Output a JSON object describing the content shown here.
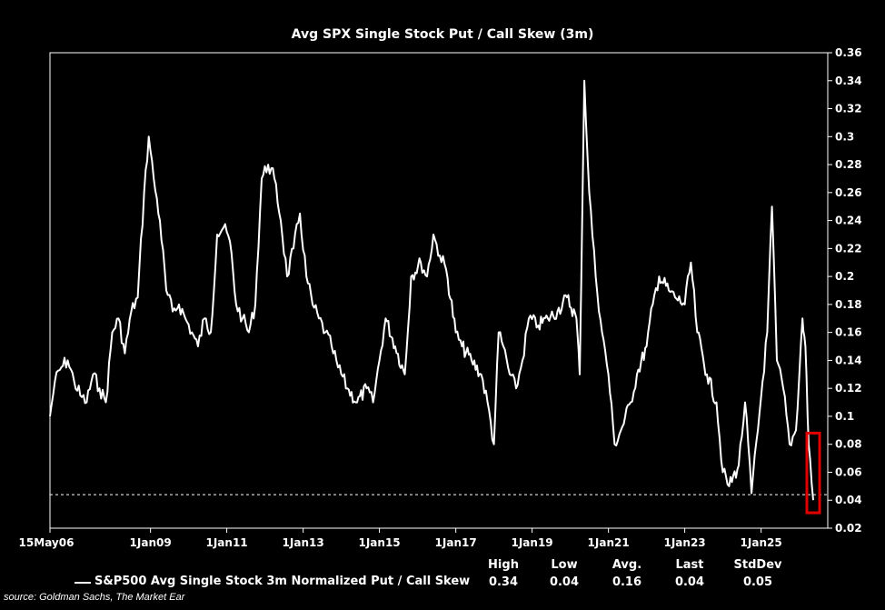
{
  "chart_data": {
    "type": "line",
    "title": "Avg SPX Single Stock Put / Call Skew (3m)",
    "xlabel": "",
    "ylabel": "",
    "y_axis_side": "right",
    "ylim": [
      0.02,
      0.36
    ],
    "yticks": [
      "0.36",
      "0.34",
      "0.32",
      "0.3",
      "0.28",
      "0.26",
      "0.24",
      "0.22",
      "0.2",
      "0.18",
      "0.16",
      "0.14",
      "0.12",
      "0.1",
      "0.08",
      "0.06",
      "0.04",
      "0.02"
    ],
    "xlim": [
      "2006-05-15",
      "2026-10-01"
    ],
    "xticks": [
      {
        "label": "15May06",
        "date": "2006-05-15"
      },
      {
        "label": "1Jan09",
        "date": "2009-01-01"
      },
      {
        "label": "1Jan11",
        "date": "2011-01-01"
      },
      {
        "label": "1Jan13",
        "date": "2013-01-01"
      },
      {
        "label": "1Jan15",
        "date": "2015-01-01"
      },
      {
        "label": "1Jan17",
        "date": "2017-01-01"
      },
      {
        "label": "1Jan19",
        "date": "2019-01-01"
      },
      {
        "label": "1Jan21",
        "date": "2021-01-01"
      },
      {
        "label": "1Jan23",
        "date": "2023-01-01"
      },
      {
        "label": "1Jan25",
        "date": "2025-01-01"
      }
    ],
    "grid": false,
    "series": [
      {
        "name": "S&P500 Avg Single Stock 3m Normalized Put / Call Skew",
        "color": "#ffffff",
        "points": [
          [
            "2006-05-15",
            0.1
          ],
          [
            "2006-07-01",
            0.125
          ],
          [
            "2006-09-01",
            0.135
          ],
          [
            "2006-11-01",
            0.14
          ],
          [
            "2007-01-01",
            0.125
          ],
          [
            "2007-03-01",
            0.115
          ],
          [
            "2007-05-01",
            0.11
          ],
          [
            "2007-07-01",
            0.13
          ],
          [
            "2007-09-01",
            0.12
          ],
          [
            "2007-11-01",
            0.11
          ],
          [
            "2008-01-01",
            0.16
          ],
          [
            "2008-03-01",
            0.17
          ],
          [
            "2008-05-01",
            0.145
          ],
          [
            "2008-07-01",
            0.175
          ],
          [
            "2008-09-01",
            0.185
          ],
          [
            "2008-11-01",
            0.26
          ],
          [
            "2008-12-15",
            0.3
          ],
          [
            "2009-02-01",
            0.27
          ],
          [
            "2009-04-01",
            0.24
          ],
          [
            "2009-06-01",
            0.19
          ],
          [
            "2009-08-01",
            0.175
          ],
          [
            "2009-10-01",
            0.18
          ],
          [
            "2009-12-01",
            0.17
          ],
          [
            "2010-02-01",
            0.16
          ],
          [
            "2010-04-01",
            0.15
          ],
          [
            "2010-06-01",
            0.17
          ],
          [
            "2010-08-01",
            0.16
          ],
          [
            "2010-10-01",
            0.23
          ],
          [
            "2010-12-01",
            0.235
          ],
          [
            "2011-02-01",
            0.225
          ],
          [
            "2011-04-01",
            0.18
          ],
          [
            "2011-06-01",
            0.17
          ],
          [
            "2011-08-01",
            0.16
          ],
          [
            "2011-10-01",
            0.18
          ],
          [
            "2011-12-01",
            0.27
          ],
          [
            "2012-02-01",
            0.28
          ],
          [
            "2012-04-01",
            0.27
          ],
          [
            "2012-06-01",
            0.24
          ],
          [
            "2012-08-01",
            0.2
          ],
          [
            "2012-10-01",
            0.22
          ],
          [
            "2012-12-01",
            0.245
          ],
          [
            "2013-02-01",
            0.2
          ],
          [
            "2013-04-01",
            0.18
          ],
          [
            "2013-06-01",
            0.17
          ],
          [
            "2013-08-01",
            0.16
          ],
          [
            "2013-10-01",
            0.15
          ],
          [
            "2013-12-01",
            0.135
          ],
          [
            "2014-03-01",
            0.12
          ],
          [
            "2014-06-01",
            0.11
          ],
          [
            "2014-09-01",
            0.12
          ],
          [
            "2014-11-01",
            0.11
          ],
          [
            "2015-01-01",
            0.14
          ],
          [
            "2015-03-01",
            0.17
          ],
          [
            "2015-06-01",
            0.15
          ],
          [
            "2015-09-01",
            0.13
          ],
          [
            "2015-11-01",
            0.2
          ],
          [
            "2016-02-01",
            0.21
          ],
          [
            "2016-04-01",
            0.2
          ],
          [
            "2016-06-01",
            0.23
          ],
          [
            "2016-08-01",
            0.215
          ],
          [
            "2016-10-01",
            0.205
          ],
          [
            "2017-01-01",
            0.16
          ],
          [
            "2017-03-01",
            0.15
          ],
          [
            "2017-06-01",
            0.14
          ],
          [
            "2017-09-01",
            0.13
          ],
          [
            "2017-11-01",
            0.11
          ],
          [
            "2018-01-01",
            0.08
          ],
          [
            "2018-02-15",
            0.16
          ],
          [
            "2018-04-01",
            0.15
          ],
          [
            "2018-06-01",
            0.13
          ],
          [
            "2018-08-01",
            0.12
          ],
          [
            "2018-10-01",
            0.14
          ],
          [
            "2018-12-01",
            0.17
          ],
          [
            "2019-03-01",
            0.165
          ],
          [
            "2019-06-01",
            0.17
          ],
          [
            "2019-09-01",
            0.175
          ],
          [
            "2019-12-01",
            0.185
          ],
          [
            "2020-03-01",
            0.17
          ],
          [
            "2020-04-01",
            0.13
          ],
          [
            "2020-05-15",
            0.34
          ],
          [
            "2020-07-01",
            0.26
          ],
          [
            "2020-09-01",
            0.2
          ],
          [
            "2020-11-01",
            0.16
          ],
          [
            "2021-01-01",
            0.13
          ],
          [
            "2021-03-01",
            0.08
          ],
          [
            "2021-05-01",
            0.09
          ],
          [
            "2021-08-01",
            0.11
          ],
          [
            "2021-10-01",
            0.13
          ],
          [
            "2022-01-01",
            0.15
          ],
          [
            "2022-03-01",
            0.18
          ],
          [
            "2022-05-01",
            0.2
          ],
          [
            "2022-08-01",
            0.19
          ],
          [
            "2022-10-01",
            0.185
          ],
          [
            "2023-01-01",
            0.18
          ],
          [
            "2023-03-01",
            0.21
          ],
          [
            "2023-05-01",
            0.16
          ],
          [
            "2023-08-01",
            0.13
          ],
          [
            "2023-11-01",
            0.11
          ],
          [
            "2024-01-01",
            0.06
          ],
          [
            "2024-03-01",
            0.05
          ],
          [
            "2024-06-01",
            0.065
          ],
          [
            "2024-08-01",
            0.11
          ],
          [
            "2024-10-01",
            0.045
          ],
          [
            "2024-12-01",
            0.09
          ],
          [
            "2025-03-01",
            0.16
          ],
          [
            "2025-04-15",
            0.25
          ],
          [
            "2025-06-01",
            0.14
          ],
          [
            "2025-08-01",
            0.12
          ],
          [
            "2025-10-01",
            0.08
          ],
          [
            "2025-12-01",
            0.09
          ],
          [
            "2026-02-01",
            0.17
          ],
          [
            "2026-03-01",
            0.15
          ],
          [
            "2026-04-01",
            0.08
          ],
          [
            "2026-05-15",
            0.04
          ]
        ]
      }
    ],
    "reference_line": {
      "y": 0.044,
      "style": "dashed",
      "color": "#ffffff"
    },
    "highlight_box": {
      "x_start": "2026-03-15",
      "x_end": "2026-07-15",
      "y_low": 0.031,
      "y_high": 0.088,
      "color": "#e00000"
    },
    "stats": {
      "high_label": "High",
      "high": "0.34",
      "low_label": "Low",
      "low": "0.04",
      "avg_label": "Avg.",
      "avg": "0.16",
      "last_label": "Last",
      "last": "0.04",
      "stddev_label": "StdDev",
      "stddev": "0.05"
    },
    "legend_label": "S&P500 Avg Single Stock 3m Normalized Put / Call Skew"
  },
  "source": "source: Goldman Sachs, The Market Ear"
}
